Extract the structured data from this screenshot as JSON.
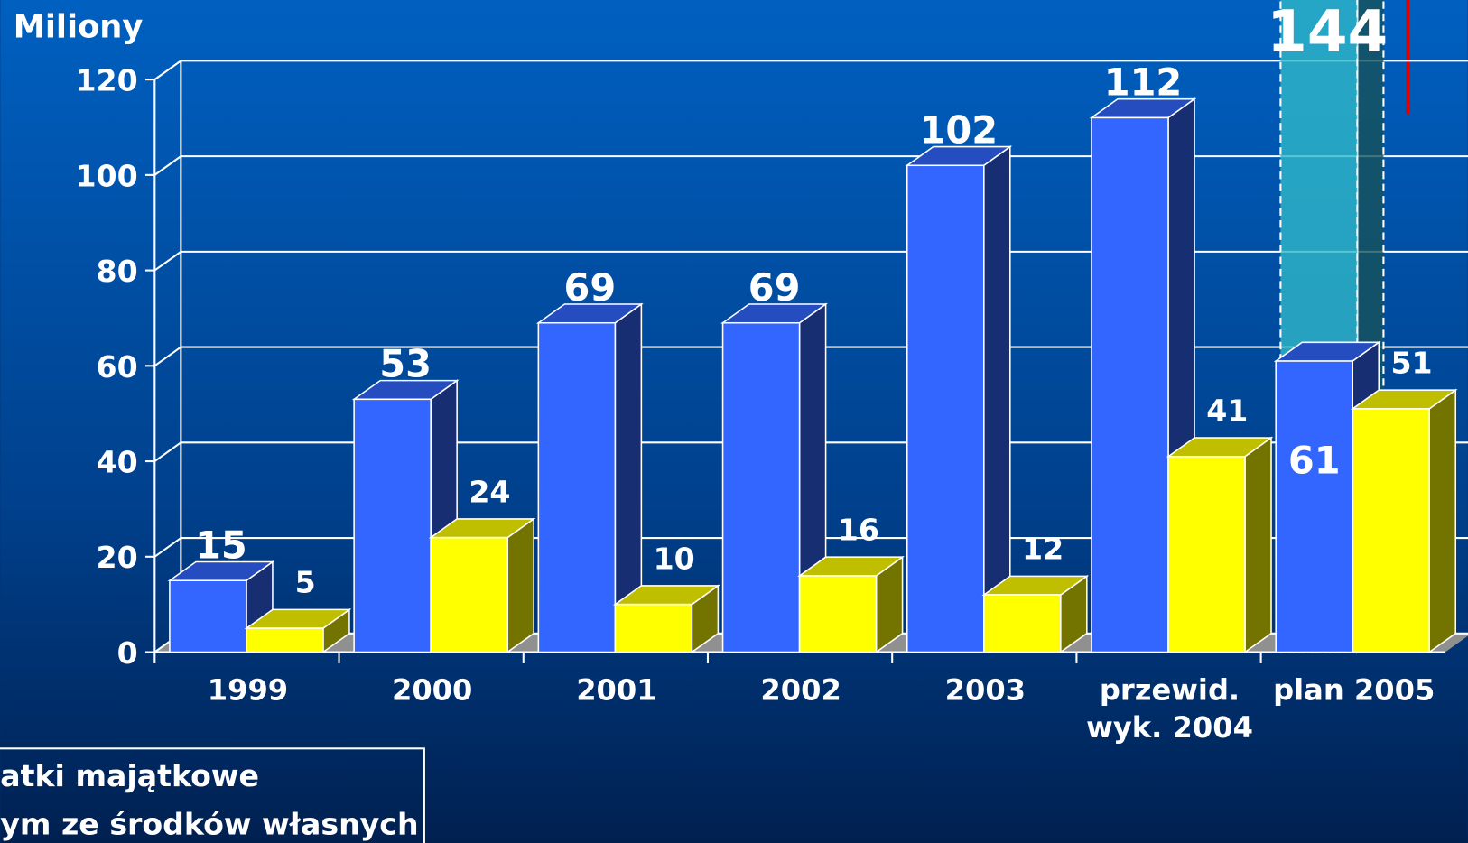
{
  "chart_data": {
    "type": "bar3d",
    "y_label": "Miliony",
    "categories": [
      "1999",
      "2000",
      "2001",
      "2002",
      "2003",
      "przewid. wyk. 2004",
      "plan 2005"
    ],
    "series": [
      {
        "color": "#30b8c8",
        "values": [
          null,
          null,
          null,
          null,
          null,
          null,
          144
        ]
      },
      {
        "name": "atki majątkowe",
        "color": "#3366ff",
        "values": [
          15,
          53,
          69,
          69,
          102,
          112,
          61
        ]
      },
      {
        "name": "ym ze środków własnych",
        "color": "#ffff00",
        "values": [
          5,
          24,
          10,
          16,
          12,
          41,
          51
        ]
      }
    ],
    "ylim": [
      0,
      120
    ],
    "yticks": [
      0,
      20,
      40,
      60,
      80,
      100,
      120
    ],
    "grid": true
  }
}
